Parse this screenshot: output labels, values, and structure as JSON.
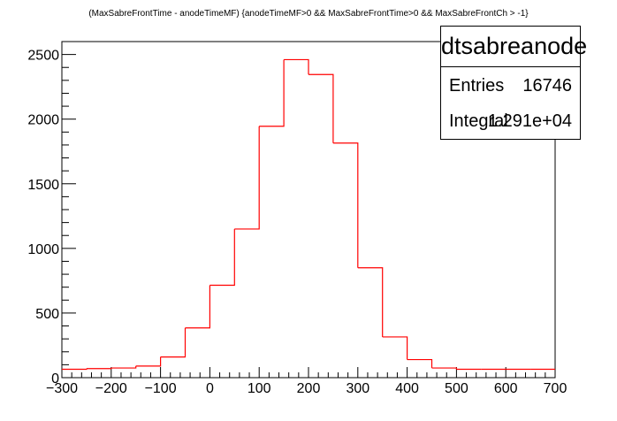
{
  "chart_data": {
    "type": "histogram",
    "title": "(MaxSabreFrontTime - anodeTimeMF) {anodeTimeMF>0 && MaxSabreFrontTime>0 && MaxSabreFrontCh > -1}",
    "xlabel": "",
    "ylabel": "",
    "xlim": [
      -300,
      700
    ],
    "ylim": [
      0,
      2600
    ],
    "bin_edges": [
      -300,
      -250,
      -200,
      -150,
      -100,
      -50,
      0,
      50,
      100,
      150,
      200,
      250,
      300,
      350,
      400,
      450,
      500,
      550,
      600,
      650,
      700
    ],
    "values": [
      65,
      70,
      75,
      90,
      160,
      385,
      715,
      1150,
      1945,
      2460,
      2345,
      1815,
      850,
      315,
      140,
      75,
      65,
      65,
      65,
      65
    ],
    "x_ticks": [
      -300,
      -200,
      -100,
      0,
      100,
      200,
      300,
      400,
      500,
      600,
      700
    ],
    "x_tick_labels": [
      "−300",
      "−200",
      "−100",
      "0",
      "100",
      "200",
      "300",
      "400",
      "500",
      "600",
      "700"
    ],
    "y_ticks": [
      0,
      500,
      1000,
      1500,
      2000,
      2500
    ],
    "y_tick_labels": [
      "0",
      "500",
      "1000",
      "1500",
      "2000",
      "2500"
    ],
    "grid": false,
    "line_color": "#ff0000",
    "stats": {
      "name": "dtsabreanode",
      "entries_label": "Entries",
      "entries_value": "16746",
      "integral_label": "Integral",
      "integral_value": "1.291e+04"
    }
  }
}
